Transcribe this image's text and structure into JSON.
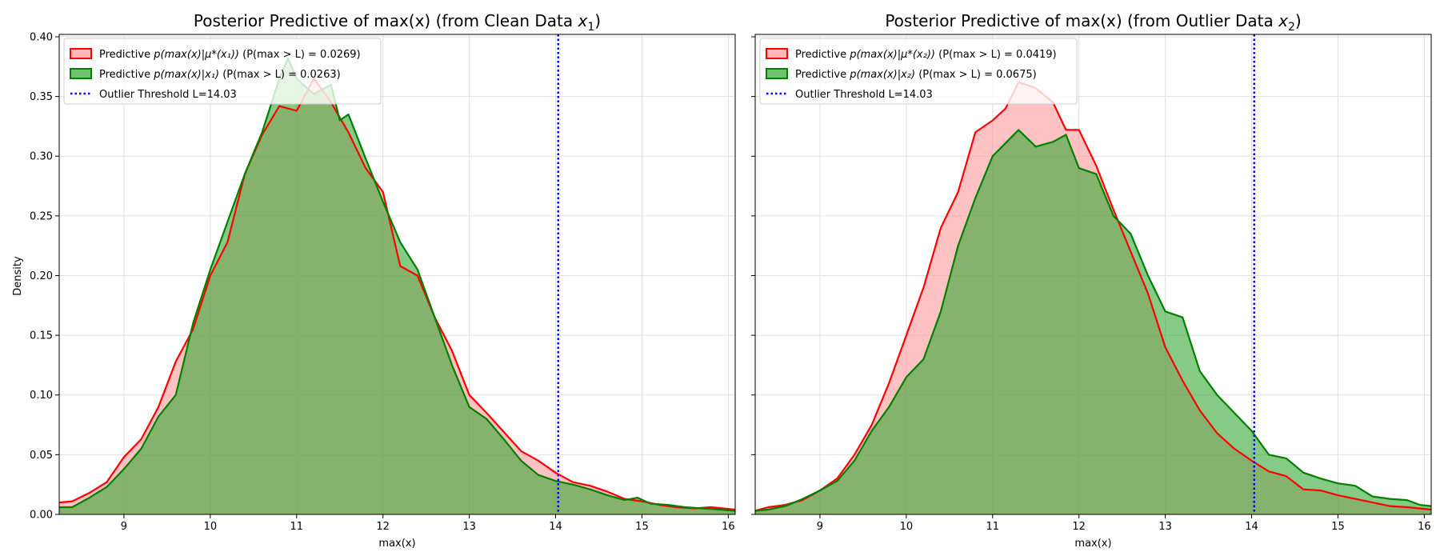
{
  "figure": {
    "ylabel": "Density",
    "xlabel": "max(x)"
  },
  "chart_data": [
    {
      "type": "area",
      "title_main": "Posterior Predictive of max(x) (from Clean Data ",
      "title_var": "x",
      "title_sub": "1",
      "title_end": ")",
      "xlabel": "max(x)",
      "ylabel": "Density",
      "xlim": [
        8.25,
        16.08
      ],
      "ylim": [
        0.0,
        0.402
      ],
      "xticks": [
        9,
        10,
        11,
        12,
        13,
        14,
        15,
        16
      ],
      "yticks": [
        0.0,
        0.05,
        0.1,
        0.15,
        0.2,
        0.25,
        0.3,
        0.35,
        0.4
      ],
      "ytick_labels": [
        "0.00",
        "0.05",
        "0.10",
        "0.15",
        "0.20",
        "0.25",
        "0.30",
        "0.35",
        "0.40"
      ],
      "grid": true,
      "legend_position": "upper-left",
      "threshold": {
        "value": 14.03,
        "label": "Outlier Threshold L=14.03",
        "color": "#0000ff"
      },
      "series": [
        {
          "label_pre": "Predictive ",
          "label_math": "p(max(x)|μ*(x₁))",
          "label_prob": "(P(max > L) = 0.0269)",
          "color": "#ff0000",
          "fill": "#ff9999",
          "x": [
            8.25,
            8.4,
            8.6,
            8.8,
            9.0,
            9.2,
            9.4,
            9.6,
            9.8,
            10.0,
            10.2,
            10.4,
            10.6,
            10.8,
            11.0,
            11.2,
            11.4,
            11.6,
            11.8,
            12.0,
            12.2,
            12.4,
            12.6,
            12.8,
            13.0,
            13.2,
            13.4,
            13.6,
            13.8,
            14.0,
            14.2,
            14.4,
            14.6,
            14.8,
            15.0,
            15.2,
            15.4,
            15.6,
            15.8,
            16.08
          ],
          "y": [
            0.01,
            0.011,
            0.018,
            0.027,
            0.048,
            0.063,
            0.09,
            0.128,
            0.155,
            0.2,
            0.228,
            0.285,
            0.318,
            0.342,
            0.338,
            0.365,
            0.345,
            0.32,
            0.29,
            0.27,
            0.208,
            0.2,
            0.165,
            0.137,
            0.1,
            0.085,
            0.069,
            0.053,
            0.045,
            0.035,
            0.027,
            0.024,
            0.019,
            0.013,
            0.011,
            0.008,
            0.006,
            0.005,
            0.006,
            0.004
          ]
        },
        {
          "label_pre": "Predictive ",
          "label_math": "p(max(x)|x₁)",
          "label_prob": "(P(max > L) = 0.0263)",
          "color": "#008000",
          "fill": "#33a733",
          "x": [
            8.25,
            8.4,
            8.6,
            8.8,
            9.0,
            9.2,
            9.4,
            9.6,
            9.8,
            10.0,
            10.2,
            10.4,
            10.6,
            10.8,
            10.9,
            11.0,
            11.2,
            11.4,
            11.5,
            11.6,
            11.8,
            12.0,
            12.2,
            12.4,
            12.6,
            12.8,
            13.0,
            13.2,
            13.4,
            13.6,
            13.8,
            14.0,
            14.2,
            14.4,
            14.6,
            14.8,
            14.95,
            15.1,
            15.3,
            15.5,
            15.7,
            15.9,
            16.08
          ],
          "y": [
            0.006,
            0.006,
            0.014,
            0.023,
            0.038,
            0.055,
            0.082,
            0.1,
            0.16,
            0.205,
            0.245,
            0.285,
            0.32,
            0.365,
            0.382,
            0.365,
            0.352,
            0.36,
            0.33,
            0.335,
            0.298,
            0.262,
            0.228,
            0.205,
            0.165,
            0.125,
            0.09,
            0.08,
            0.063,
            0.045,
            0.033,
            0.028,
            0.025,
            0.021,
            0.016,
            0.012,
            0.014,
            0.009,
            0.008,
            0.006,
            0.005,
            0.004,
            0.003
          ]
        }
      ]
    },
    {
      "type": "area",
      "title_main": "Posterior Predictive of max(x) (from Outlier Data ",
      "title_var": "x",
      "title_sub": "2",
      "title_end": ")",
      "xlabel": "max(x)",
      "ylabel": "",
      "xlim": [
        8.25,
        16.08
      ],
      "ylim": [
        0.0,
        0.402
      ],
      "xticks": [
        9,
        10,
        11,
        12,
        13,
        14,
        15,
        16
      ],
      "yticks": [
        0.0,
        0.05,
        0.1,
        0.15,
        0.2,
        0.25,
        0.3,
        0.35,
        0.4
      ],
      "grid": true,
      "legend_position": "upper-left",
      "threshold": {
        "value": 14.03,
        "label": "Outlier Threshold L=14.03",
        "color": "#0000ff"
      },
      "series": [
        {
          "label_pre": "Predictive ",
          "label_math": "p(max(x)|μ*(x₂))",
          "label_prob": "(P(max > L) = 0.0419)",
          "color": "#ff0000",
          "fill": "#ff9999",
          "x": [
            8.25,
            8.4,
            8.6,
            8.8,
            9.0,
            9.2,
            9.4,
            9.6,
            9.8,
            10.0,
            10.2,
            10.4,
            10.6,
            10.8,
            11.0,
            11.15,
            11.3,
            11.5,
            11.7,
            11.85,
            12.0,
            12.2,
            12.4,
            12.6,
            12.8,
            13.0,
            13.2,
            13.4,
            13.6,
            13.8,
            14.0,
            14.2,
            14.4,
            14.6,
            14.8,
            15.0,
            15.2,
            15.4,
            15.6,
            15.8,
            16.08
          ],
          "y": [
            0.003,
            0.006,
            0.008,
            0.012,
            0.02,
            0.03,
            0.05,
            0.075,
            0.11,
            0.15,
            0.19,
            0.24,
            0.27,
            0.32,
            0.33,
            0.34,
            0.362,
            0.357,
            0.345,
            0.322,
            0.322,
            0.292,
            0.255,
            0.22,
            0.185,
            0.14,
            0.112,
            0.087,
            0.068,
            0.055,
            0.045,
            0.036,
            0.032,
            0.021,
            0.02,
            0.016,
            0.013,
            0.01,
            0.007,
            0.006,
            0.004
          ]
        },
        {
          "label_pre": "Predictive ",
          "label_math": "p(max(x)|x₂)",
          "label_prob": "(P(max > L) = 0.0675)",
          "color": "#008000",
          "fill": "#33a733",
          "x": [
            8.25,
            8.4,
            8.6,
            8.8,
            9.0,
            9.2,
            9.4,
            9.6,
            9.8,
            10.0,
            10.2,
            10.4,
            10.6,
            10.8,
            11.0,
            11.3,
            11.5,
            11.7,
            11.85,
            12.0,
            12.2,
            12.4,
            12.6,
            12.8,
            13.0,
            13.2,
            13.4,
            13.6,
            13.8,
            14.0,
            14.2,
            14.4,
            14.6,
            14.8,
            15.0,
            15.2,
            15.4,
            15.6,
            15.8,
            15.95,
            16.08
          ],
          "y": [
            0.003,
            0.004,
            0.007,
            0.013,
            0.02,
            0.028,
            0.045,
            0.07,
            0.09,
            0.115,
            0.13,
            0.17,
            0.225,
            0.265,
            0.3,
            0.322,
            0.308,
            0.312,
            0.318,
            0.29,
            0.285,
            0.25,
            0.235,
            0.2,
            0.17,
            0.165,
            0.12,
            0.1,
            0.085,
            0.07,
            0.05,
            0.047,
            0.035,
            0.03,
            0.026,
            0.024,
            0.015,
            0.013,
            0.012,
            0.008,
            0.007
          ]
        }
      ]
    }
  ]
}
